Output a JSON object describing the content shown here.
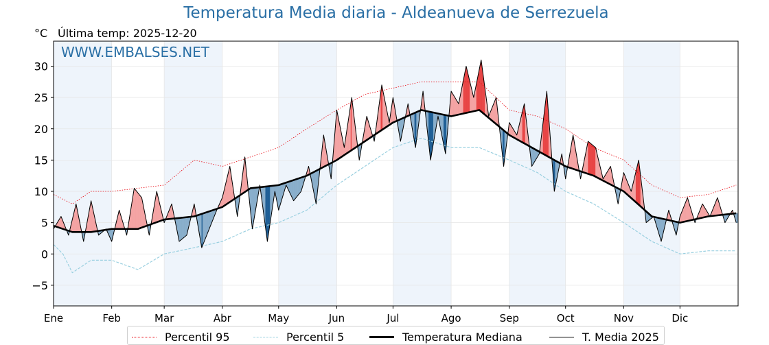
{
  "title": "Temperatura Media diaria - Aldeanueva de Serrezuela",
  "unit": "°C",
  "last_temp_label": "Última temp: 2025-12-20",
  "watermark": "WWW.EMBALSES.NET",
  "colors": {
    "title": "#2a6fa5",
    "p95": "#e8000b",
    "p5": "#9ad0e0",
    "median": "#000000",
    "media2025": "#000000",
    "above_fill": "#f4a3a3",
    "above_strong": "#e84545",
    "below_fill": "#89aecb",
    "below_strong": "#1f5f96",
    "month_band": "#eef4fb"
  },
  "legend": [
    {
      "label": "Percentil 95",
      "style": "p95"
    },
    {
      "label": "Percentil 5",
      "style": "p5"
    },
    {
      "label": "Temperatura Mediana",
      "style": "median"
    },
    {
      "label": "T. Media 2025",
      "style": "media2025"
    }
  ],
  "chart_data": {
    "type": "line",
    "title": "Temperatura Media diaria - Aldeanueva de Serrezuela",
    "ylabel": "°C",
    "xlabel": "",
    "ylim": [
      -8.3,
      34
    ],
    "yticks": [
      -5,
      0,
      5,
      10,
      15,
      20,
      25,
      30
    ],
    "xlim_day": [
      0,
      365
    ],
    "months": [
      "Ene",
      "Feb",
      "Mar",
      "Abr",
      "May",
      "Jun",
      "Jul",
      "Ago",
      "Sep",
      "Oct",
      "Nov",
      "Dic"
    ],
    "month_start_day": [
      0,
      31,
      59,
      90,
      120,
      151,
      181,
      212,
      243,
      273,
      304,
      334
    ],
    "grid": true,
    "legend_position": "bottom",
    "shading": "alternating month bands; area between T. Media 2025 and mediana filled red where above, blue where below",
    "series": [
      {
        "name": "Percentil 95",
        "style": "dotted red",
        "day": [
          0,
          10,
          20,
          31,
          45,
          59,
          75,
          90,
          105,
          120,
          135,
          151,
          166,
          181,
          196,
          212,
          227,
          243,
          258,
          273,
          288,
          304,
          319,
          334,
          349,
          364
        ],
        "values": [
          9.5,
          8,
          10,
          10,
          10.5,
          11,
          15,
          14,
          15.5,
          17,
          20,
          23,
          25.5,
          26.5,
          27.5,
          27.5,
          27.5,
          23,
          22,
          20,
          17,
          15,
          11,
          9,
          9.5,
          11
        ]
      },
      {
        "name": "Percentil 5",
        "style": "dashed light blue",
        "day": [
          0,
          5,
          10,
          20,
          31,
          45,
          59,
          75,
          90,
          105,
          120,
          135,
          151,
          166,
          181,
          196,
          212,
          227,
          243,
          258,
          273,
          288,
          304,
          319,
          334,
          349,
          364
        ],
        "values": [
          1.5,
          0,
          -3,
          -1,
          -1,
          -2.5,
          0,
          1,
          2,
          4,
          5,
          7,
          11,
          14,
          17,
          18.5,
          17,
          17,
          15,
          13,
          10,
          8,
          5,
          2,
          0,
          0.5,
          0.5
        ]
      },
      {
        "name": "Temperatura Mediana",
        "style": "thick black",
        "day": [
          0,
          10,
          20,
          31,
          45,
          59,
          75,
          90,
          105,
          120,
          135,
          151,
          166,
          181,
          196,
          212,
          227,
          243,
          258,
          273,
          288,
          304,
          319,
          334,
          349,
          364
        ],
        "values": [
          4.5,
          3.5,
          3.5,
          4,
          4,
          5.5,
          6,
          7.5,
          10.5,
          11,
          12.5,
          15,
          18,
          21,
          23,
          22,
          23,
          19,
          16.5,
          14,
          12.5,
          10,
          6,
          5,
          6,
          6.5
        ]
      },
      {
        "name": "T. Media 2025",
        "style": "thin black",
        "day": [
          0,
          4,
          8,
          12,
          16,
          20,
          24,
          28,
          31,
          35,
          39,
          43,
          47,
          51,
          55,
          59,
          63,
          67,
          71,
          75,
          79,
          83,
          87,
          90,
          94,
          98,
          102,
          106,
          110,
          114,
          118,
          120,
          124,
          128,
          132,
          136,
          140,
          144,
          148,
          151,
          155,
          159,
          163,
          167,
          171,
          175,
          179,
          181,
          185,
          189,
          193,
          197,
          201,
          205,
          209,
          212,
          216,
          220,
          224,
          228,
          232,
          236,
          240,
          243,
          247,
          251,
          255,
          259,
          263,
          267,
          271,
          273,
          277,
          281,
          285,
          289,
          293,
          297,
          301,
          304,
          308,
          312,
          316,
          320,
          324,
          328,
          332,
          334,
          338,
          342,
          346,
          350,
          354,
          358,
          362,
          364
        ],
        "values": [
          4,
          6,
          3,
          8,
          2,
          8.5,
          3,
          4,
          2,
          7,
          3,
          10.5,
          9,
          3,
          10,
          5,
          8,
          2,
          3,
          8,
          1,
          4,
          7,
          9,
          14,
          6,
          15.5,
          4,
          11,
          2,
          10,
          7,
          11,
          8.5,
          10,
          14,
          8,
          19,
          12,
          23,
          17,
          25,
          15,
          22,
          18,
          27,
          21,
          25,
          18,
          24,
          17,
          26,
          15,
          22,
          16,
          26,
          24,
          30,
          25,
          31,
          22,
          25,
          14,
          21,
          19,
          24,
          14,
          16,
          26,
          10,
          16,
          12,
          19,
          12,
          18,
          17,
          12,
          14,
          8,
          13,
          10,
          15,
          5,
          6,
          2,
          7,
          3,
          6,
          9,
          5,
          8,
          6,
          9,
          5,
          7,
          5
        ]
      }
    ]
  }
}
